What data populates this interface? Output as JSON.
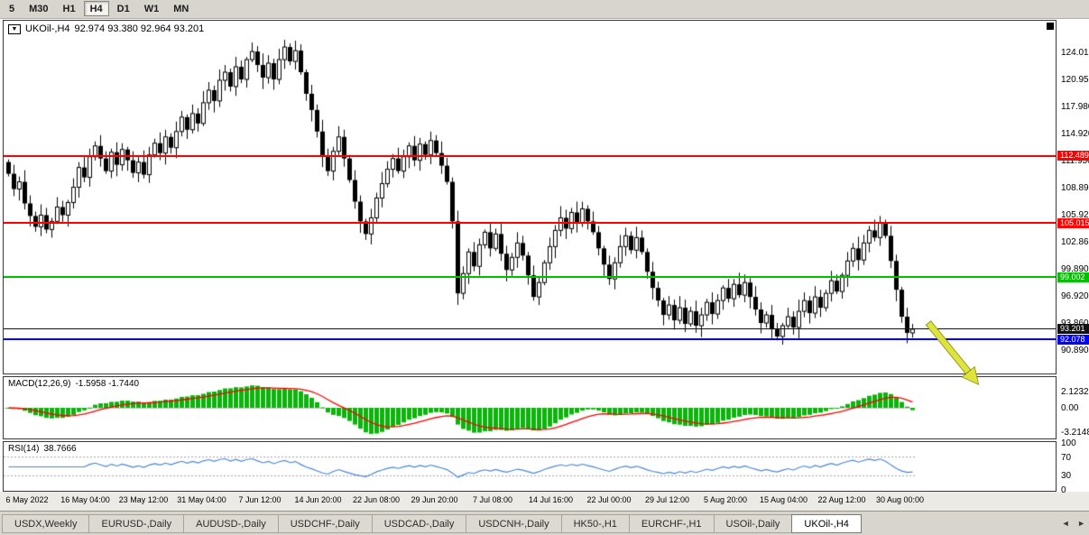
{
  "toolbar": {
    "timeframes": [
      "5",
      "M30",
      "H1",
      "H4",
      "D1",
      "W1",
      "MN"
    ],
    "active": "H4"
  },
  "chart": {
    "title": "UKOil-,H4",
    "ohlc": "92.974 93.380 92.964 93.201",
    "dropdown_icon": "▼",
    "price_axis": [
      "124.010",
      "120.950",
      "117.980",
      "114.920",
      "111.950",
      "108.890",
      "105.920",
      "102.860",
      "99.890",
      "96.920",
      "93.860",
      "90.890"
    ],
    "levels": [
      {
        "label": "112.489",
        "value": 112.489,
        "color": "#ff0000",
        "thickness": 2
      },
      {
        "label": "105.015",
        "value": 105.015,
        "color": "#ff0000",
        "thickness": 2
      },
      {
        "label": "99.002",
        "value": 99.002,
        "color": "#00c000",
        "thickness": 2
      },
      {
        "label": "93.201",
        "value": 93.201,
        "color": "#111111",
        "thickness": 1
      },
      {
        "label": "92.078",
        "value": 92.078,
        "color": "#0000ff",
        "thickness": 2
      }
    ],
    "time_axis": [
      "6 May 2022",
      "16 May 04:00",
      "23 May 12:00",
      "31 May 04:00",
      "7 Jun 12:00",
      "14 Jun 20:00",
      "22 Jun 08:00",
      "29 Jun 20:00",
      "7 Jul 08:00",
      "14 Jul 16:00",
      "22 Jul 00:00",
      "29 Jul 12:00",
      "5 Aug 20:00",
      "15 Aug 04:00",
      "22 Aug 12:00",
      "30 Aug 00:00"
    ]
  },
  "chart_data": {
    "type": "candlestick",
    "symbol": "UKOil-",
    "timeframe": "H4",
    "last_ohlc": {
      "open": 92.974,
      "high": 93.38,
      "low": 92.964,
      "close": 93.201
    },
    "ylim": [
      88.1,
      127.6
    ],
    "support_resistance": [
      112.489,
      105.015,
      99.002,
      92.078
    ],
    "current_price": 93.201,
    "first_open": 111.8,
    "closes": [
      110.5,
      108.8,
      109.6,
      107.2,
      105.8,
      104.6,
      105.9,
      104.3,
      105.2,
      106.8,
      105.9,
      107.3,
      109.0,
      111.2,
      110.1,
      112.4,
      113.6,
      112.2,
      110.8,
      112.9,
      111.5,
      113.2,
      112.0,
      110.6,
      111.8,
      110.4,
      112.6,
      113.9,
      112.8,
      114.6,
      113.4,
      115.2,
      116.8,
      115.4,
      117.2,
      116.1,
      118.4,
      119.8,
      118.6,
      120.9,
      121.8,
      120.2,
      122.4,
      121.0,
      123.2,
      124.1,
      122.6,
      121.2,
      122.8,
      121.0,
      123.2,
      124.6,
      123.0,
      124.2,
      121.8,
      119.4,
      117.6,
      115.2,
      112.4,
      110.8,
      113.0,
      114.6,
      112.2,
      109.8,
      107.4,
      105.2,
      103.8,
      105.6,
      107.8,
      109.4,
      111.0,
      112.2,
      110.8,
      112.4,
      113.6,
      112.0,
      113.8,
      112.6,
      114.2,
      112.8,
      111.4,
      109.6,
      105.2,
      97.2,
      99.4,
      101.8,
      100.2,
      102.6,
      104.0,
      102.2,
      103.8,
      101.6,
      99.8,
      101.2,
      102.8,
      101.4,
      99.2,
      96.8,
      98.4,
      100.6,
      102.4,
      104.2,
      105.6,
      104.4,
      106.2,
      105.0,
      106.6,
      105.2,
      104.0,
      102.2,
      100.4,
      98.8,
      100.6,
      102.4,
      103.6,
      102.0,
      103.4,
      101.8,
      99.6,
      97.8,
      96.4,
      94.8,
      95.9,
      94.2,
      95.6,
      93.8,
      95.2,
      93.6,
      94.8,
      96.2,
      94.9,
      96.4,
      97.8,
      96.6,
      98.2,
      97.0,
      98.4,
      96.8,
      95.4,
      93.9,
      94.8,
      93.2,
      92.4,
      93.6,
      94.6,
      93.4,
      95.2,
      96.4,
      95.0,
      96.8,
      95.6,
      97.2,
      98.6,
      97.4,
      99.2,
      100.8,
      102.2,
      100.9,
      102.8,
      104.2,
      103.4,
      105.0,
      103.6,
      100.8,
      97.6,
      94.6,
      92.8,
      93.2
    ]
  },
  "macd": {
    "label": "MACD(12,26,9)",
    "values": "-1.5958 -1.7440",
    "axis_values": [
      2.1232,
      0,
      -3.2148
    ],
    "axis_labels": [
      "2.1232",
      "0.00",
      "-3.2148"
    ],
    "histogram_color": "#00bb00",
    "signal_color": "#ff0000"
  },
  "rsi": {
    "label": "RSI(14)",
    "value": "38.7666",
    "axis_values": [
      100,
      70,
      30,
      0
    ],
    "axis_labels": [
      "100",
      "70",
      "30",
      "0"
    ],
    "levels": [
      70,
      30
    ],
    "line_color": "#4a86d8"
  },
  "tabs": {
    "items": [
      "USDX,Weekly",
      "EURUSD-,Daily",
      "AUDUSD-,Daily",
      "USDCHF-,Daily",
      "USDCAD-,Daily",
      "USDCNH-,Daily",
      "HK50-,H1",
      "EURCHF-,H1",
      "USOil-,Daily",
      "UKOil-,H4"
    ],
    "active": "UKOil-,H4",
    "scroll_left_icon": "◄",
    "scroll_right_icon": "►"
  },
  "arrow": {
    "color": "#dfe43c",
    "outline": "#86860f"
  }
}
